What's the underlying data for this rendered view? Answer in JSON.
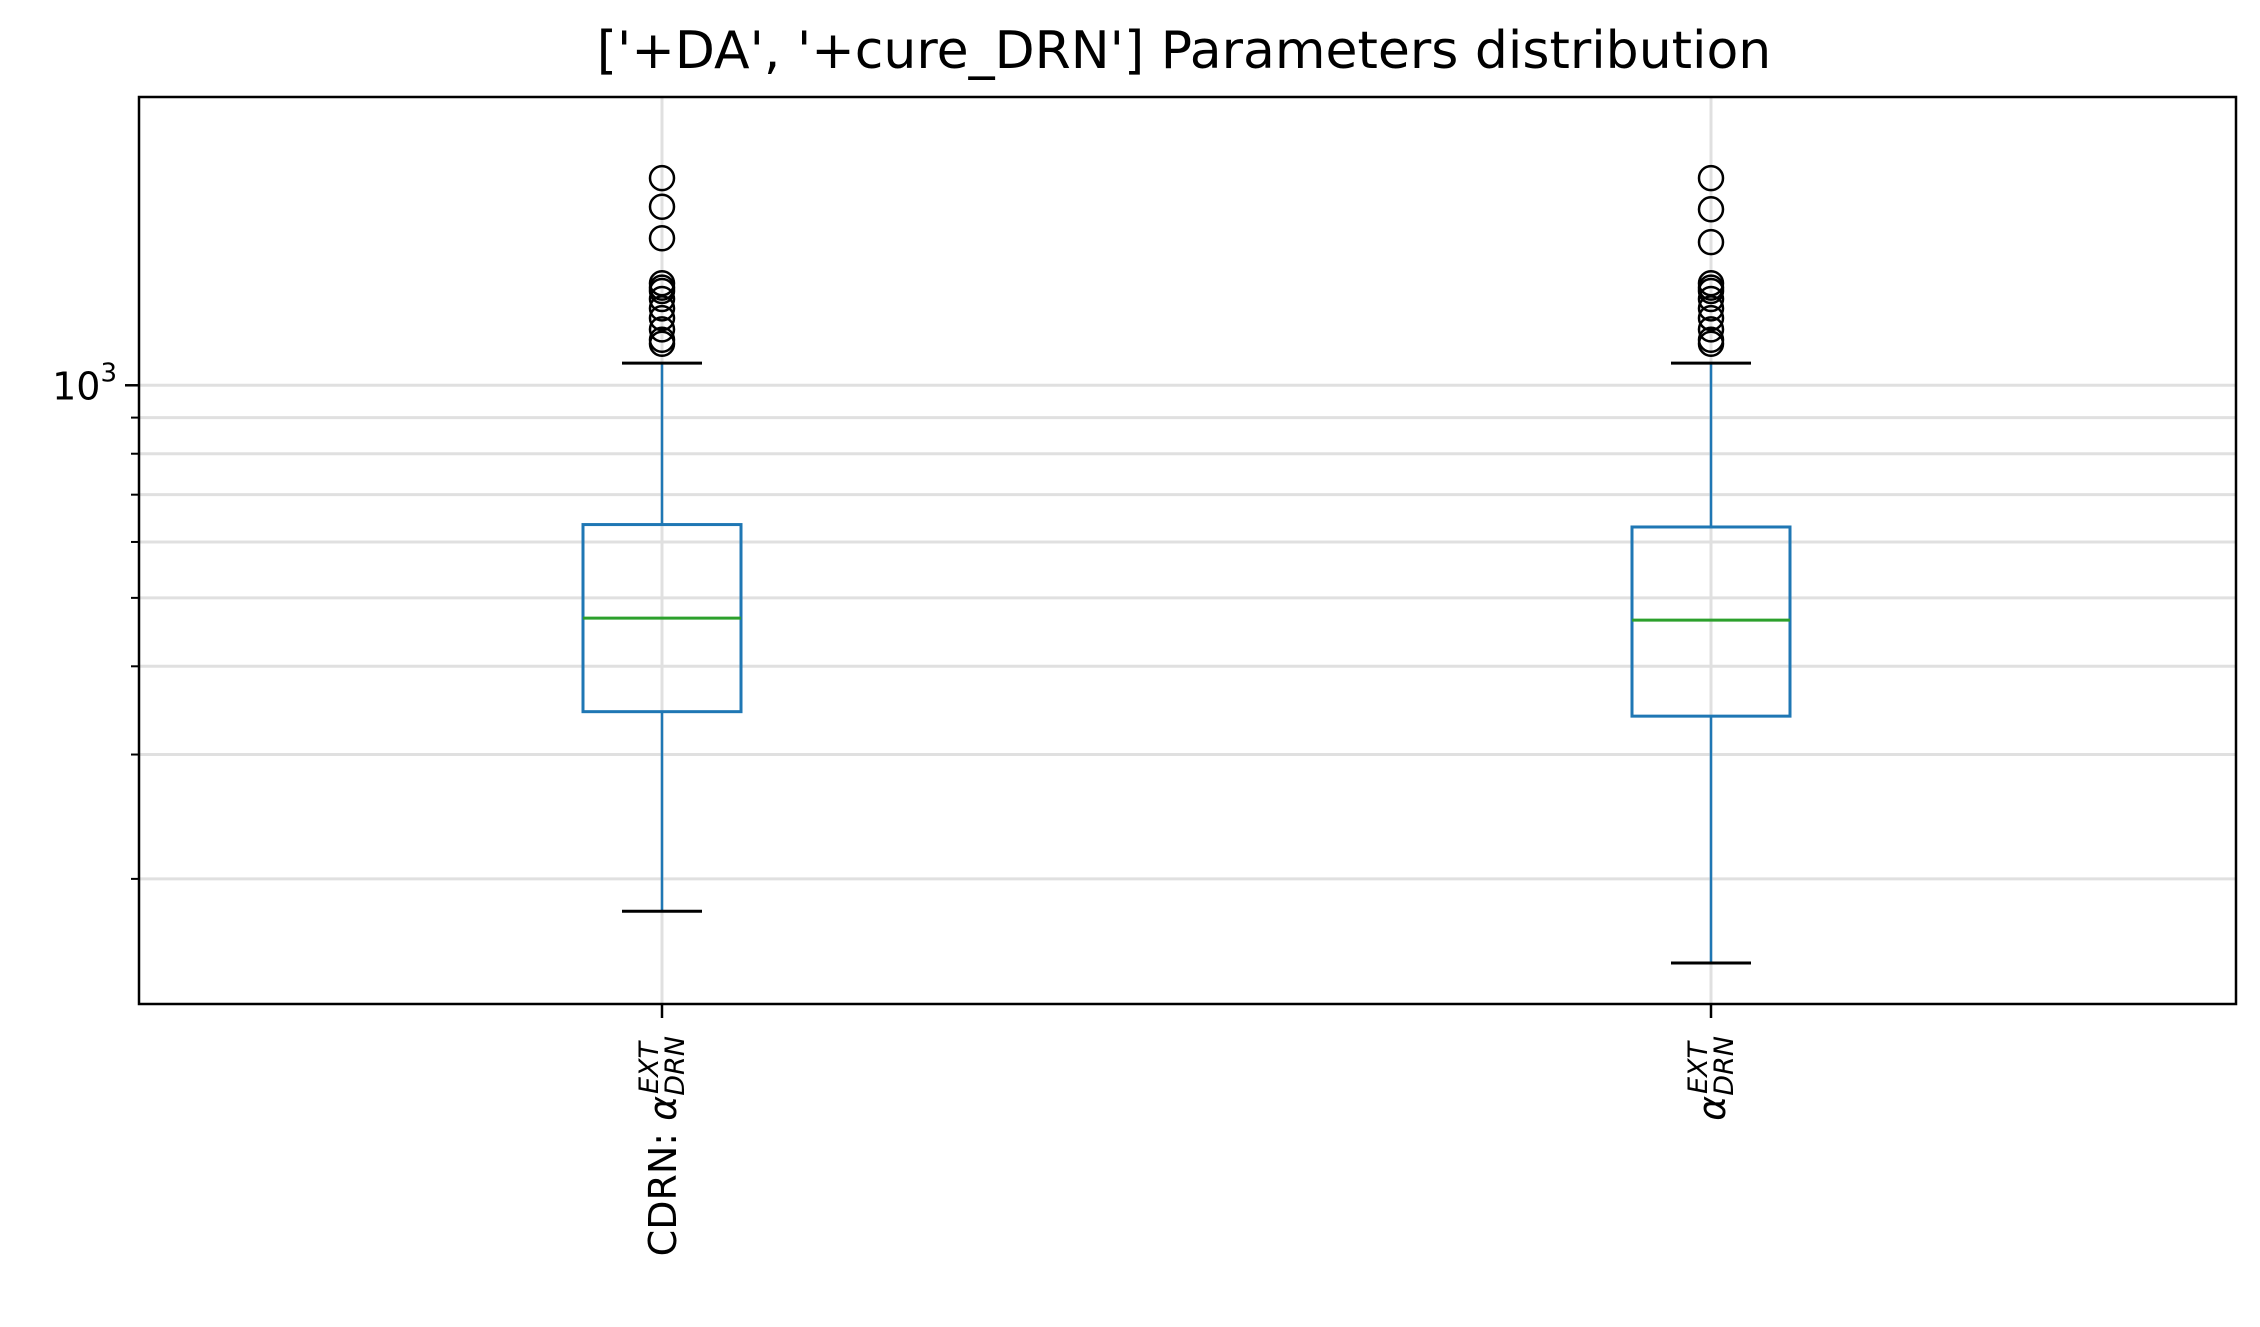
{
  "chart_data": {
    "type": "box",
    "title": "['+DA', '+cure_DRN'] Parameters distribution",
    "xlabel": "",
    "ylabel": "",
    "yscale": "log",
    "ylim": [
      133,
      2560
    ],
    "grid": true,
    "y_ticks": [
      {
        "value": 1000,
        "base": "10",
        "exp": "3"
      }
    ],
    "y_minor_ticks": [
      200,
      300,
      400,
      500,
      600,
      700,
      800,
      900
    ],
    "categories": [
      {
        "prefix": "CDRN: ",
        "symbol": "α",
        "sub": "DRN",
        "sup": "EXT"
      },
      {
        "prefix": "",
        "symbol": "α",
        "sub": "DRN",
        "sup": "EXT"
      }
    ],
    "boxes": [
      {
        "whisker_low": 180,
        "q1": 345,
        "median": 468,
        "q3": 635,
        "whisker_high": 1075,
        "outliers": [
          1145,
          1160,
          1200,
          1245,
          1285,
          1325,
          1360,
          1375,
          1395,
          1615,
          1790,
          1965
        ]
      },
      {
        "whisker_low": 152,
        "q1": 340,
        "median": 465,
        "q3": 630,
        "whisker_high": 1075,
        "outliers": [
          1145,
          1160,
          1200,
          1245,
          1285,
          1325,
          1360,
          1375,
          1395,
          1595,
          1775,
          1965
        ]
      }
    ],
    "colors": {
      "box": "#1f77b4",
      "median": "#2ca02c",
      "caps": "#000000",
      "outlier_edge": "#000000",
      "grid": "#e0e0e0",
      "axes": "#000000"
    }
  }
}
